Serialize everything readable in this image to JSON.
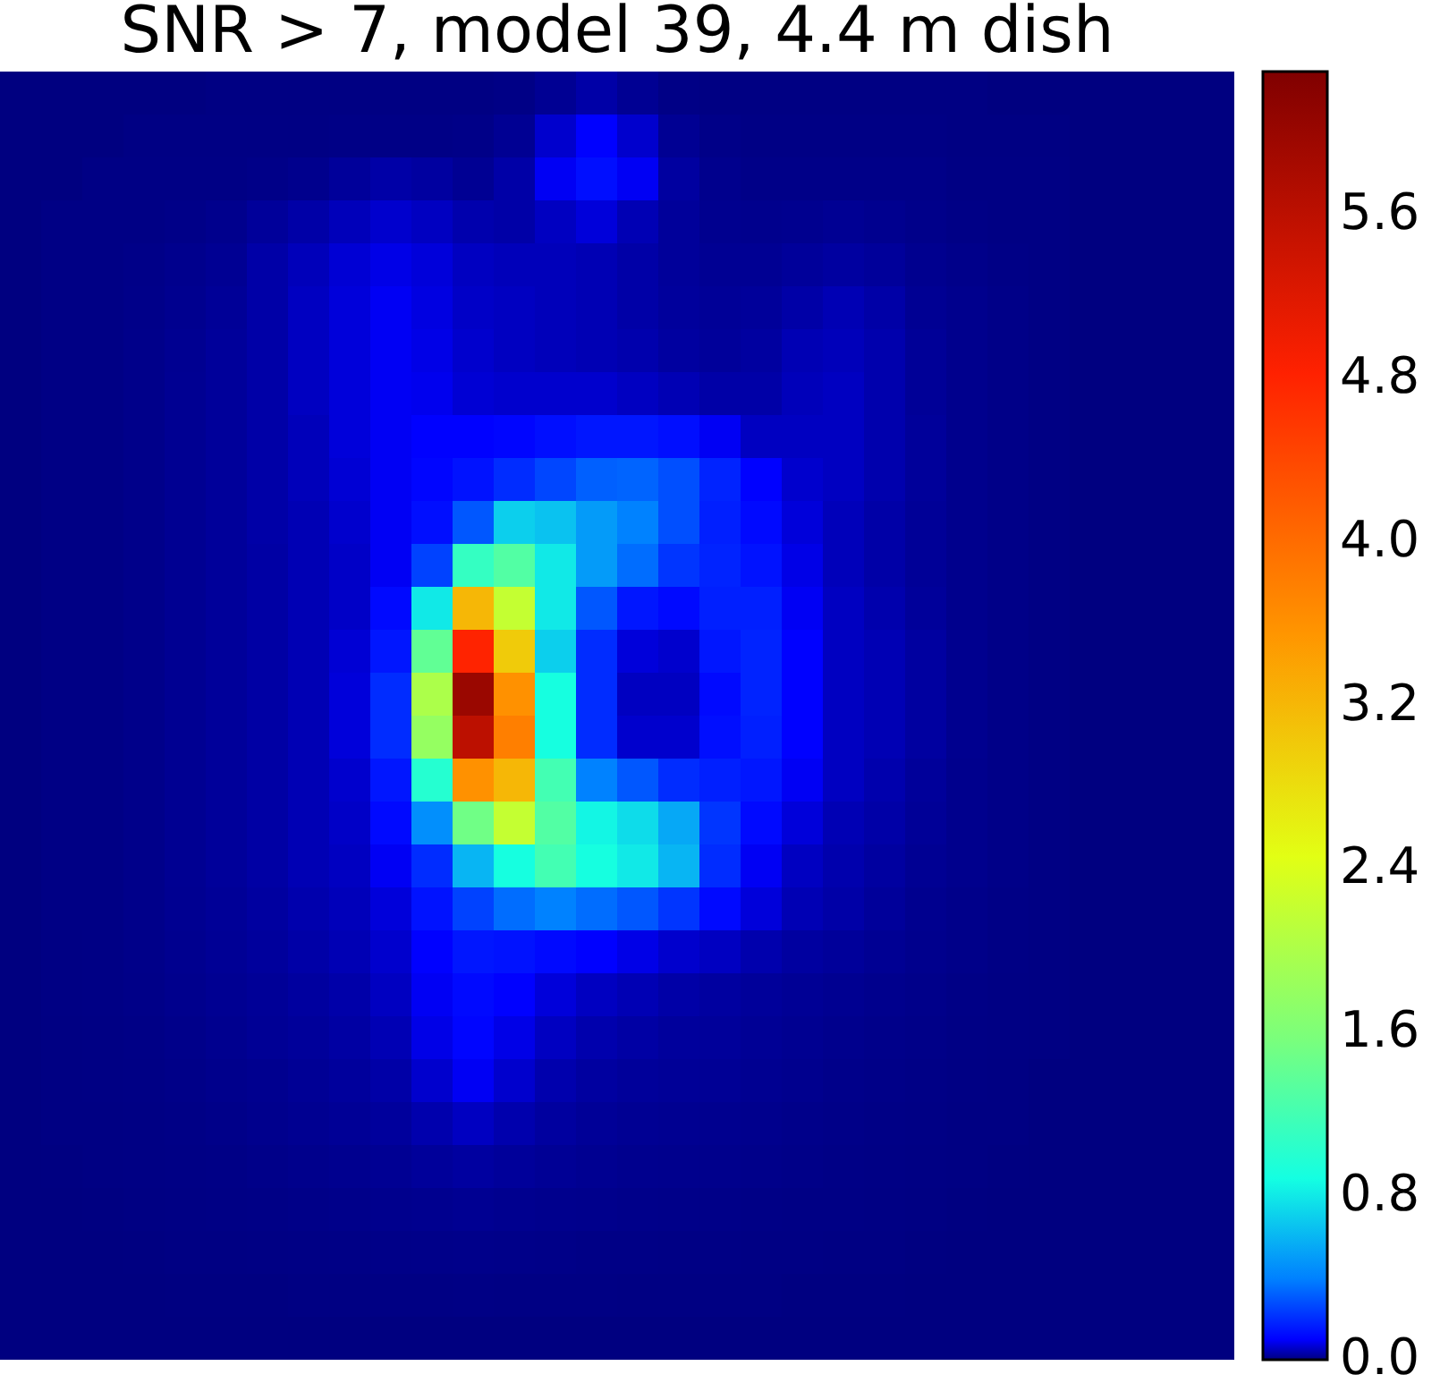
{
  "chart_data": {
    "type": "heatmap",
    "title": "SNR > 7, model 39, 4.4 m dish",
    "categories": [
      null,
      null,
      null,
      null,
      null,
      null,
      null,
      null,
      null,
      null,
      null,
      null,
      null,
      null,
      null,
      null,
      null,
      null,
      null,
      null,
      null,
      null,
      null,
      null,
      null,
      null,
      null,
      null,
      null,
      null
    ],
    "y_categories": [
      null,
      null,
      null,
      null,
      null,
      null,
      null,
      null,
      null,
      null,
      null,
      null,
      null,
      null,
      null,
      null,
      null,
      null,
      null,
      null,
      null,
      null,
      null,
      null,
      null,
      null,
      null,
      null,
      null,
      null
    ],
    "cells": [
      [
        0,
        0,
        0,
        0,
        0,
        0.002,
        0.002,
        0.002,
        0.002,
        0.002,
        0.002,
        0.002,
        0.005,
        0.015,
        0.03,
        0.015,
        0.005,
        0.002,
        0.002,
        0.002,
        0.002,
        0.002,
        0.002,
        0.002,
        0,
        0,
        0,
        0,
        0,
        0
      ],
      [
        0,
        0,
        0,
        0.003,
        0.003,
        0.003,
        0.003,
        0.003,
        0.005,
        0.005,
        0.005,
        0.006,
        0.015,
        0.06,
        0.1,
        0.06,
        0.015,
        0.006,
        0.004,
        0.004,
        0.004,
        0.004,
        0.004,
        0.002,
        0.002,
        0.002,
        0,
        0,
        0,
        0
      ],
      [
        0,
        0,
        0.004,
        0.004,
        0.004,
        0.004,
        0.006,
        0.01,
        0.02,
        0.03,
        0.025,
        0.015,
        0.03,
        0.09,
        0.13,
        0.09,
        0.025,
        0.01,
        0.006,
        0.006,
        0.006,
        0.006,
        0.006,
        0.003,
        0.003,
        0.003,
        0,
        0,
        0,
        0
      ],
      [
        0,
        0.004,
        0.004,
        0.004,
        0.006,
        0.01,
        0.02,
        0.03,
        0.045,
        0.06,
        0.05,
        0.035,
        0.03,
        0.05,
        0.07,
        0.04,
        0.02,
        0.012,
        0.01,
        0.012,
        0.015,
        0.012,
        0.008,
        0.005,
        0.003,
        0.003,
        0,
        0,
        0,
        0
      ],
      [
        0,
        0.004,
        0.004,
        0.006,
        0.01,
        0.015,
        0.03,
        0.045,
        0.065,
        0.08,
        0.07,
        0.05,
        0.045,
        0.045,
        0.04,
        0.03,
        0.02,
        0.015,
        0.015,
        0.02,
        0.025,
        0.02,
        0.012,
        0.008,
        0.005,
        0.003,
        0,
        0,
        0,
        0
      ],
      [
        0,
        0.004,
        0.004,
        0.007,
        0.012,
        0.018,
        0.03,
        0.05,
        0.07,
        0.09,
        0.075,
        0.055,
        0.05,
        0.045,
        0.04,
        0.03,
        0.022,
        0.018,
        0.02,
        0.03,
        0.04,
        0.03,
        0.015,
        0.01,
        0.006,
        0.003,
        0,
        0,
        0,
        0
      ],
      [
        0,
        0.004,
        0.004,
        0.008,
        0.013,
        0.02,
        0.03,
        0.05,
        0.07,
        0.09,
        0.08,
        0.06,
        0.05,
        0.045,
        0.04,
        0.035,
        0.025,
        0.02,
        0.025,
        0.04,
        0.045,
        0.035,
        0.018,
        0.01,
        0.006,
        0.003,
        0,
        0,
        0,
        0
      ],
      [
        0,
        0.004,
        0.004,
        0.008,
        0.014,
        0.02,
        0.03,
        0.05,
        0.07,
        0.09,
        0.085,
        0.065,
        0.06,
        0.06,
        0.06,
        0.05,
        0.04,
        0.03,
        0.03,
        0.045,
        0.05,
        0.035,
        0.018,
        0.01,
        0.006,
        0.003,
        0,
        0,
        0,
        0
      ],
      [
        0,
        0.004,
        0.004,
        0.008,
        0.014,
        0.02,
        0.03,
        0.045,
        0.07,
        0.09,
        0.1,
        0.1,
        0.11,
        0.13,
        0.15,
        0.15,
        0.13,
        0.09,
        0.05,
        0.05,
        0.05,
        0.035,
        0.02,
        0.01,
        0.006,
        0.003,
        0,
        0,
        0,
        0
      ],
      [
        0,
        0.004,
        0.004,
        0.008,
        0.014,
        0.02,
        0.03,
        0.045,
        0.065,
        0.09,
        0.11,
        0.14,
        0.2,
        0.26,
        0.32,
        0.33,
        0.28,
        0.18,
        0.1,
        0.06,
        0.05,
        0.035,
        0.02,
        0.01,
        0.006,
        0.003,
        0,
        0,
        0,
        0
      ],
      [
        0,
        0.004,
        0.004,
        0.008,
        0.014,
        0.02,
        0.03,
        0.04,
        0.06,
        0.09,
        0.13,
        0.3,
        0.7,
        0.65,
        0.5,
        0.4,
        0.28,
        0.17,
        0.12,
        0.07,
        0.045,
        0.03,
        0.018,
        0.01,
        0.006,
        0.003,
        0,
        0,
        0,
        0
      ],
      [
        0,
        0.004,
        0.004,
        0.008,
        0.014,
        0.02,
        0.028,
        0.04,
        0.055,
        0.09,
        0.25,
        1.1,
        1.3,
        0.8,
        0.5,
        0.35,
        0.22,
        0.18,
        0.14,
        0.08,
        0.045,
        0.03,
        0.018,
        0.01,
        0.006,
        0.003,
        0,
        0,
        0,
        0
      ],
      [
        0,
        0.004,
        0.004,
        0.008,
        0.014,
        0.02,
        0.028,
        0.04,
        0.055,
        0.12,
        0.8,
        3.2,
        2.2,
        0.8,
        0.3,
        0.15,
        0.12,
        0.17,
        0.17,
        0.09,
        0.05,
        0.035,
        0.02,
        0.01,
        0.006,
        0.003,
        0,
        0,
        0,
        0
      ],
      [
        0,
        0.004,
        0.004,
        0.008,
        0.014,
        0.02,
        0.028,
        0.04,
        0.065,
        0.15,
        1.4,
        4.8,
        3.0,
        0.7,
        0.2,
        0.07,
        0.06,
        0.15,
        0.18,
        0.1,
        0.05,
        0.04,
        0.025,
        0.012,
        0.006,
        0.003,
        0,
        0,
        0,
        0
      ],
      [
        0,
        0.004,
        0.004,
        0.008,
        0.014,
        0.02,
        0.028,
        0.04,
        0.07,
        0.2,
        2.0,
        6.0,
        3.6,
        0.9,
        0.2,
        0.05,
        0.05,
        0.12,
        0.18,
        0.1,
        0.05,
        0.04,
        0.025,
        0.012,
        0.006,
        0.003,
        0,
        0,
        0,
        0
      ],
      [
        0,
        0.004,
        0.004,
        0.008,
        0.014,
        0.02,
        0.028,
        0.04,
        0.07,
        0.2,
        1.8,
        5.6,
        3.8,
        0.9,
        0.2,
        0.06,
        0.06,
        0.13,
        0.17,
        0.1,
        0.05,
        0.04,
        0.025,
        0.012,
        0.006,
        0.003,
        0,
        0,
        0,
        0
      ],
      [
        0,
        0.004,
        0.004,
        0.008,
        0.014,
        0.02,
        0.028,
        0.04,
        0.06,
        0.15,
        1.0,
        3.6,
        3.2,
        1.2,
        0.4,
        0.3,
        0.2,
        0.17,
        0.15,
        0.09,
        0.05,
        0.035,
        0.02,
        0.01,
        0.006,
        0.003,
        0,
        0,
        0,
        0
      ],
      [
        0,
        0.004,
        0.004,
        0.008,
        0.014,
        0.02,
        0.028,
        0.04,
        0.055,
        0.12,
        0.45,
        1.5,
        2.2,
        1.3,
        0.85,
        0.75,
        0.55,
        0.22,
        0.12,
        0.07,
        0.04,
        0.03,
        0.018,
        0.01,
        0.006,
        0.003,
        0,
        0,
        0,
        0
      ],
      [
        0,
        0.004,
        0.004,
        0.008,
        0.014,
        0.02,
        0.028,
        0.04,
        0.05,
        0.09,
        0.2,
        0.6,
        0.9,
        1.2,
        0.9,
        0.8,
        0.6,
        0.2,
        0.09,
        0.05,
        0.035,
        0.025,
        0.015,
        0.01,
        0.006,
        0.003,
        0,
        0,
        0,
        0
      ],
      [
        0,
        0.004,
        0.004,
        0.008,
        0.013,
        0.018,
        0.025,
        0.035,
        0.045,
        0.07,
        0.14,
        0.25,
        0.35,
        0.4,
        0.35,
        0.3,
        0.22,
        0.12,
        0.07,
        0.04,
        0.03,
        0.02,
        0.012,
        0.008,
        0.005,
        0.003,
        0,
        0,
        0,
        0
      ],
      [
        0,
        0.003,
        0.004,
        0.007,
        0.012,
        0.016,
        0.022,
        0.03,
        0.04,
        0.06,
        0.1,
        0.15,
        0.14,
        0.12,
        0.1,
        0.08,
        0.06,
        0.05,
        0.035,
        0.025,
        0.02,
        0.015,
        0.01,
        0.007,
        0.004,
        0.002,
        0,
        0,
        0,
        0
      ],
      [
        0,
        0.003,
        0.004,
        0.006,
        0.01,
        0.014,
        0.018,
        0.024,
        0.032,
        0.05,
        0.09,
        0.12,
        0.1,
        0.07,
        0.05,
        0.04,
        0.03,
        0.025,
        0.02,
        0.016,
        0.013,
        0.01,
        0.008,
        0.005,
        0.003,
        0.002,
        0,
        0,
        0,
        0
      ],
      [
        0,
        0.002,
        0.003,
        0.005,
        0.008,
        0.012,
        0.016,
        0.02,
        0.027,
        0.04,
        0.08,
        0.11,
        0.08,
        0.05,
        0.035,
        0.028,
        0.022,
        0.02,
        0.016,
        0.013,
        0.01,
        0.008,
        0.006,
        0.004,
        0.003,
        0.002,
        0,
        0,
        0,
        0
      ],
      [
        0,
        0.002,
        0.003,
        0.004,
        0.006,
        0.009,
        0.012,
        0.016,
        0.022,
        0.03,
        0.06,
        0.09,
        0.06,
        0.035,
        0.025,
        0.02,
        0.018,
        0.016,
        0.013,
        0.011,
        0.008,
        0.006,
        0.005,
        0.003,
        0.002,
        0,
        0,
        0,
        0,
        0
      ],
      [
        0,
        0.002,
        0.002,
        0.003,
        0.005,
        0.007,
        0.01,
        0.013,
        0.017,
        0.022,
        0.035,
        0.05,
        0.035,
        0.024,
        0.018,
        0.015,
        0.013,
        0.012,
        0.01,
        0.008,
        0.006,
        0.005,
        0.004,
        0.002,
        0.002,
        0,
        0,
        0,
        0,
        0
      ],
      [
        0,
        0.001,
        0.002,
        0.003,
        0.004,
        0.005,
        0.007,
        0.009,
        0.012,
        0.015,
        0.02,
        0.025,
        0.02,
        0.016,
        0.013,
        0.011,
        0.01,
        0.009,
        0.008,
        0.006,
        0.005,
        0.004,
        0.003,
        0.002,
        0.001,
        0,
        0,
        0,
        0,
        0
      ],
      [
        0,
        0,
        0.001,
        0.002,
        0.003,
        0.004,
        0.005,
        0.006,
        0.008,
        0.01,
        0.012,
        0.014,
        0.012,
        0.01,
        0.009,
        0.008,
        0.007,
        0.006,
        0.005,
        0.004,
        0.004,
        0.003,
        0.002,
        0.001,
        0,
        0,
        0,
        0,
        0,
        0
      ],
      [
        0,
        0,
        0,
        0.001,
        0.002,
        0.002,
        0.003,
        0.004,
        0.005,
        0.006,
        0.007,
        0.008,
        0.007,
        0.006,
        0.005,
        0.005,
        0.004,
        0.004,
        0.003,
        0.003,
        0.002,
        0.002,
        0.001,
        0,
        0,
        0,
        0,
        0,
        0,
        0
      ],
      [
        0,
        0,
        0,
        0,
        0.001,
        0.001,
        0.001,
        0.002,
        0.002,
        0.003,
        0.003,
        0.004,
        0.003,
        0.003,
        0.003,
        0.002,
        0.002,
        0.002,
        0.002,
        0.001,
        0.001,
        0.001,
        0,
        0,
        0,
        0,
        0,
        0,
        0,
        0
      ],
      [
        0,
        0,
        0,
        0,
        0,
        0,
        0,
        0,
        0,
        0,
        0,
        0,
        0,
        0,
        0,
        0,
        0,
        0,
        0,
        0,
        0,
        0,
        0,
        0,
        0,
        0,
        0,
        0,
        0,
        0
      ]
    ],
    "clim": [
      0,
      6.3
    ],
    "cticks": [
      {
        "value": 0,
        "label": "0.0"
      },
      0.8,
      1.6,
      2.4,
      3.2,
      {
        "value": 4,
        "label": "4.0"
      },
      4.8,
      5.6
    ]
  }
}
